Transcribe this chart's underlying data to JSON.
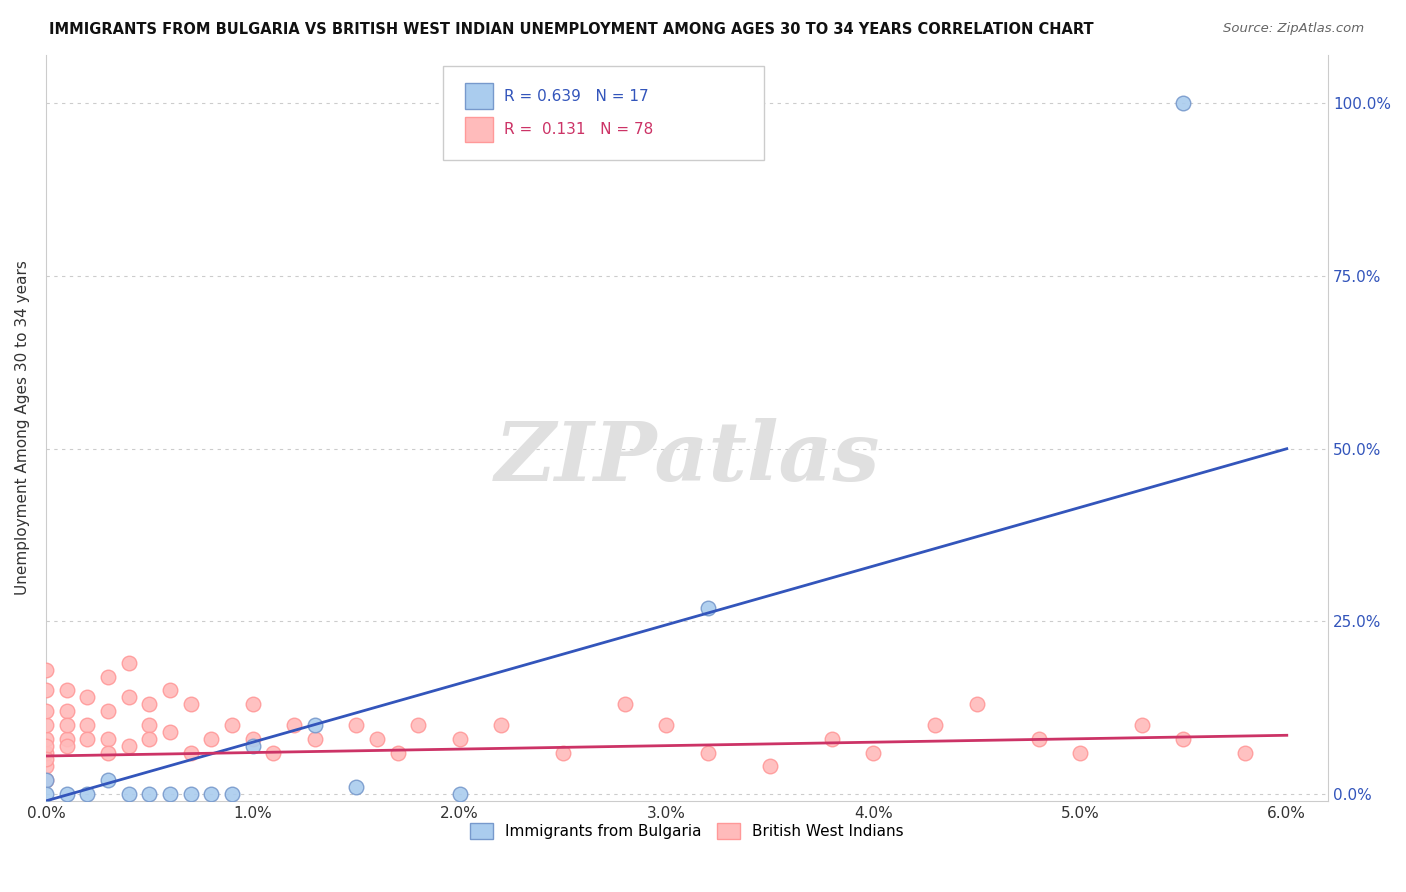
{
  "title": "IMMIGRANTS FROM BULGARIA VS BRITISH WEST INDIAN UNEMPLOYMENT AMONG AGES 30 TO 34 YEARS CORRELATION CHART",
  "source": "Source: ZipAtlas.com",
  "ylabel": "Unemployment Among Ages 30 to 34 years",
  "xlim": [
    0.0,
    0.062
  ],
  "ylim": [
    -0.01,
    1.07
  ],
  "xticks": [
    0.0,
    0.01,
    0.02,
    0.03,
    0.04,
    0.05,
    0.06
  ],
  "xticklabels": [
    "0.0%",
    "1.0%",
    "2.0%",
    "3.0%",
    "4.0%",
    "5.0%",
    "6.0%"
  ],
  "yticks": [
    0.0,
    0.25,
    0.5,
    0.75,
    1.0
  ],
  "yticklabels_right": [
    "0.0%",
    "25.0%",
    "50.0%",
    "75.0%",
    "100.0%"
  ],
  "grid_color": "#cccccc",
  "background_color": "#ffffff",
  "watermark_text": "ZIPatlas",
  "watermark_color": "#e0e0e0",
  "line_color1": "#3355bb",
  "line_color2": "#cc3366",
  "dot_color1": "#aaccee",
  "dot_color2": "#ffbbbb",
  "dot_edgecolor1": "#7799cc",
  "dot_edgecolor2": "#ff9999",
  "legend_color1": "#3355bb",
  "legend_color2": "#cc3366",
  "blue_line_x0": 0.0,
  "blue_line_y0": -0.01,
  "blue_line_x1": 0.06,
  "blue_line_y1": 0.5,
  "pink_line_x0": 0.0,
  "pink_line_y0": 0.055,
  "pink_line_x1": 0.06,
  "pink_line_y1": 0.085,
  "bulgaria_x": [
    0.0,
    0.0,
    0.001,
    0.002,
    0.003,
    0.004,
    0.005,
    0.006,
    0.007,
    0.008,
    0.009,
    0.01,
    0.013,
    0.015,
    0.02,
    0.032,
    0.055
  ],
  "bulgaria_y": [
    0.02,
    0.0,
    0.0,
    0.0,
    0.02,
    0.0,
    0.0,
    0.0,
    0.0,
    0.0,
    0.0,
    0.07,
    0.1,
    0.01,
    0.0,
    0.27,
    1.0
  ],
  "bwi_x": [
    0.0,
    0.0,
    0.0,
    0.0,
    0.0,
    0.0,
    0.0,
    0.0,
    0.0,
    0.0,
    0.001,
    0.001,
    0.001,
    0.001,
    0.001,
    0.002,
    0.002,
    0.002,
    0.003,
    0.003,
    0.003,
    0.003,
    0.004,
    0.004,
    0.004,
    0.005,
    0.005,
    0.005,
    0.006,
    0.006,
    0.007,
    0.007,
    0.008,
    0.009,
    0.01,
    0.01,
    0.011,
    0.012,
    0.013,
    0.015,
    0.016,
    0.017,
    0.018,
    0.02,
    0.022,
    0.025,
    0.028,
    0.03,
    0.032,
    0.035,
    0.038,
    0.04,
    0.043,
    0.045,
    0.048,
    0.05,
    0.053,
    0.055,
    0.058
  ],
  "bwi_y": [
    0.02,
    0.04,
    0.06,
    0.08,
    0.1,
    0.12,
    0.15,
    0.18,
    0.07,
    0.05,
    0.08,
    0.12,
    0.15,
    0.1,
    0.07,
    0.1,
    0.14,
    0.08,
    0.12,
    0.17,
    0.08,
    0.06,
    0.14,
    0.19,
    0.07,
    0.1,
    0.13,
    0.08,
    0.15,
    0.09,
    0.06,
    0.13,
    0.08,
    0.1,
    0.13,
    0.08,
    0.06,
    0.1,
    0.08,
    0.1,
    0.08,
    0.06,
    0.1,
    0.08,
    0.1,
    0.06,
    0.13,
    0.1,
    0.06,
    0.04,
    0.08,
    0.06,
    0.1,
    0.13,
    0.08,
    0.06,
    0.1,
    0.08,
    0.06
  ]
}
